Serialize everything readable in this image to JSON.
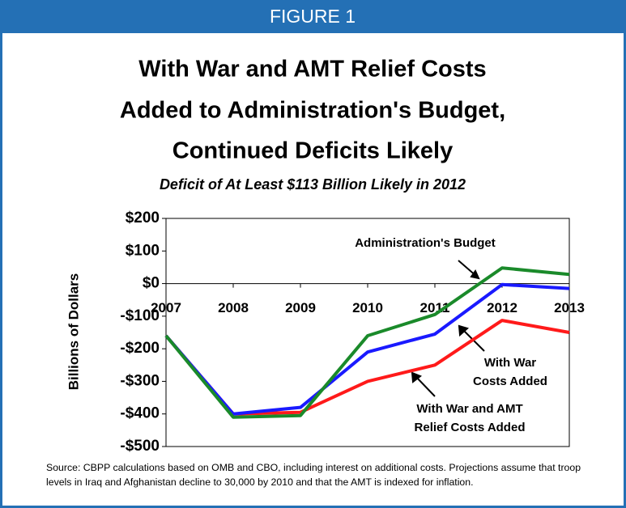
{
  "chart_data": {
    "type": "line",
    "header": "FIGURE 1",
    "title_lines": [
      "With War and AMT Relief Costs",
      "Added to Administration's Budget,",
      "Continued Deficits Likely"
    ],
    "subtitle": "Deficit of At Least $113 Billion Likely in 2012",
    "y_label": "Billions of Dollars",
    "x": [
      2007,
      2008,
      2009,
      2010,
      2011,
      2012,
      2013
    ],
    "xlim": [
      2007,
      2013
    ],
    "xticks": [
      2007,
      2008,
      2009,
      2010,
      2011,
      2012,
      2013
    ],
    "ylim": [
      -500,
      200
    ],
    "yticks": [
      {
        "value": 200,
        "label": "$200"
      },
      {
        "value": 100,
        "label": "$100"
      },
      {
        "value": 0,
        "label": "$0"
      },
      {
        "value": -100,
        "label": "-$100"
      },
      {
        "value": -200,
        "label": "-$200"
      },
      {
        "value": -300,
        "label": "-$300"
      },
      {
        "value": -400,
        "label": "-$400"
      },
      {
        "value": -500,
        "label": "-$500"
      }
    ],
    "series": [
      {
        "name": "With War and AMT Relief Costs Added",
        "color": "#ff1a1a",
        "values": [
          -160,
          -400,
          -395,
          -300,
          -250,
          -113,
          -150
        ]
      },
      {
        "name": "With War Costs Added",
        "color": "#1a1aff",
        "values": [
          -160,
          -400,
          -380,
          -210,
          -155,
          -3,
          -15
        ]
      },
      {
        "name": "Administration's Budget",
        "color": "#1a8a2a",
        "values": [
          -160,
          -410,
          -405,
          -160,
          -95,
          48,
          28
        ]
      }
    ],
    "source": "Source: CBPP calculations based on OMB and CBO, including interest on additional costs.  Projections assume that troop levels in Iraq and Afghanistan decline to 30,000 by 2010 and that the AMT is indexed for inflation."
  }
}
